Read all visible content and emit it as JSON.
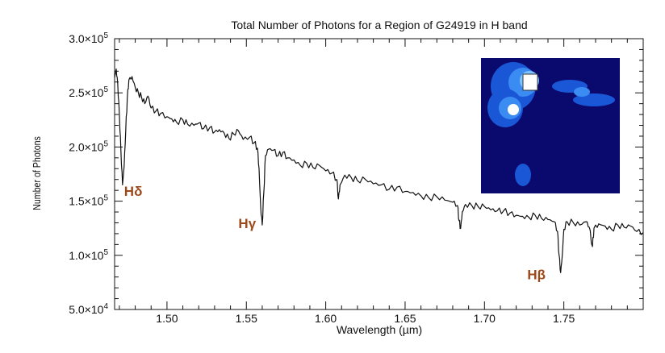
{
  "chart_data": {
    "type": "line",
    "title": "Total Number of Photons for a Region of G24919 in H band",
    "xlabel": "Wavelength (µm)",
    "ylabel": "Number of Photons",
    "xlim": [
      1.467,
      1.8
    ],
    "ylim": [
      50000,
      300000
    ],
    "x_ticks": [
      1.5,
      1.55,
      1.6,
      1.65,
      1.7,
      1.75
    ],
    "x_tick_labels": [
      "1.50",
      "1.55",
      "1.60",
      "1.65",
      "1.70",
      "1.75"
    ],
    "y_ticks": [
      50000,
      100000,
      150000,
      200000,
      250000,
      300000
    ],
    "y_tick_labels": [
      {
        "mant": "5.0",
        "exp": "4"
      },
      {
        "mant": "1.0",
        "exp": "5"
      },
      {
        "mant": "1.5",
        "exp": "5"
      },
      {
        "mant": "2.0",
        "exp": "5"
      },
      {
        "mant": "2.5",
        "exp": "5"
      },
      {
        "mant": "3.0",
        "exp": "5"
      }
    ],
    "grid": false,
    "series": [
      {
        "color": "#111111",
        "points": [
          [
            1.467,
            264000
          ],
          [
            1.468,
            272000
          ],
          [
            1.469,
            258000
          ],
          [
            1.47,
            230000
          ],
          [
            1.471,
            195000
          ],
          [
            1.472,
            165000
          ],
          [
            1.473,
            182000
          ],
          [
            1.474,
            215000
          ],
          [
            1.475,
            245000
          ],
          [
            1.476,
            262000
          ],
          [
            1.478,
            265000
          ],
          [
            1.48,
            255000
          ],
          [
            1.482,
            250000
          ],
          [
            1.484,
            246000
          ],
          [
            1.486,
            240000
          ],
          [
            1.488,
            247000
          ],
          [
            1.49,
            236000
          ],
          [
            1.493,
            233000
          ],
          [
            1.496,
            231000
          ],
          [
            1.5,
            228000
          ],
          [
            1.503,
            226000
          ],
          [
            1.506,
            223000
          ],
          [
            1.51,
            225000
          ],
          [
            1.513,
            221000
          ],
          [
            1.517,
            220000
          ],
          [
            1.52,
            222000
          ],
          [
            1.523,
            217000
          ],
          [
            1.527,
            218000
          ],
          [
            1.53,
            214000
          ],
          [
            1.533,
            216000
          ],
          [
            1.536,
            213000
          ],
          [
            1.539,
            208000
          ],
          [
            1.542,
            212000
          ],
          [
            1.545,
            215000
          ],
          [
            1.548,
            207000
          ],
          [
            1.552,
            209000
          ],
          [
            1.555,
            204000
          ],
          [
            1.557,
            199000
          ],
          [
            1.558,
            180000
          ],
          [
            1.559,
            145000
          ],
          [
            1.56,
            128000
          ],
          [
            1.561,
            158000
          ],
          [
            1.562,
            192000
          ],
          [
            1.564,
            198000
          ],
          [
            1.567,
            197000
          ],
          [
            1.57,
            192000
          ],
          [
            1.573,
            195000
          ],
          [
            1.576,
            190000
          ],
          [
            1.58,
            188000
          ],
          [
            1.584,
            183000
          ],
          [
            1.588,
            185000
          ],
          [
            1.592,
            181000
          ],
          [
            1.596,
            183000
          ],
          [
            1.6,
            178000
          ],
          [
            1.604,
            176000
          ],
          [
            1.607,
            170000
          ],
          [
            1.608,
            152000
          ],
          [
            1.609,
            165000
          ],
          [
            1.612,
            174000
          ],
          [
            1.616,
            172000
          ],
          [
            1.62,
            169000
          ],
          [
            1.625,
            170000
          ],
          [
            1.63,
            166000
          ],
          [
            1.635,
            165000
          ],
          [
            1.64,
            161000
          ],
          [
            1.645,
            163000
          ],
          [
            1.65,
            159000
          ],
          [
            1.655,
            158000
          ],
          [
            1.66,
            155000
          ],
          [
            1.665,
            153000
          ],
          [
            1.67,
            154000
          ],
          [
            1.675,
            151000
          ],
          [
            1.68,
            149000
          ],
          [
            1.683,
            146000
          ],
          [
            1.684,
            132000
          ],
          [
            1.685,
            125000
          ],
          [
            1.686,
            140000
          ],
          [
            1.688,
            147000
          ],
          [
            1.692,
            146000
          ],
          [
            1.696,
            145000
          ],
          [
            1.7,
            145000
          ],
          [
            1.704,
            142000
          ],
          [
            1.708,
            141000
          ],
          [
            1.712,
            141000
          ],
          [
            1.716,
            139000
          ],
          [
            1.72,
            137000
          ],
          [
            1.724,
            136000
          ],
          [
            1.728,
            135000
          ],
          [
            1.732,
            137000
          ],
          [
            1.736,
            134000
          ],
          [
            1.74,
            133000
          ],
          [
            1.744,
            131000
          ],
          [
            1.746,
            122000
          ],
          [
            1.747,
            100000
          ],
          [
            1.748,
            84000
          ],
          [
            1.749,
            100000
          ],
          [
            1.75,
            124000
          ],
          [
            1.752,
            131000
          ],
          [
            1.756,
            130000
          ],
          [
            1.76,
            128000
          ],
          [
            1.764,
            131000
          ],
          [
            1.766,
            126000
          ],
          [
            1.768,
            108000
          ],
          [
            1.769,
            125000
          ],
          [
            1.772,
            129000
          ],
          [
            1.776,
            127000
          ],
          [
            1.78,
            124000
          ],
          [
            1.784,
            128000
          ],
          [
            1.788,
            126000
          ],
          [
            1.792,
            127000
          ],
          [
            1.796,
            122000
          ],
          [
            1.8,
            121000
          ]
        ]
      }
    ],
    "annotations": [
      {
        "text": "Hδ",
        "x": 1.473,
        "y": 155000,
        "color": "#9c4a1a"
      },
      {
        "text": "Hγ",
        "x": 1.545,
        "y": 125000,
        "color": "#9c4a1a"
      },
      {
        "text": "Hβ",
        "x": 1.727,
        "y": 78000,
        "color": "#9c4a1a"
      }
    ],
    "inset": {
      "type": "image",
      "background": "#0a0a6e",
      "colors": [
        "#1a57d6",
        "#3b8cf2",
        "#7cc4ff",
        "#ffffff"
      ]
    }
  }
}
